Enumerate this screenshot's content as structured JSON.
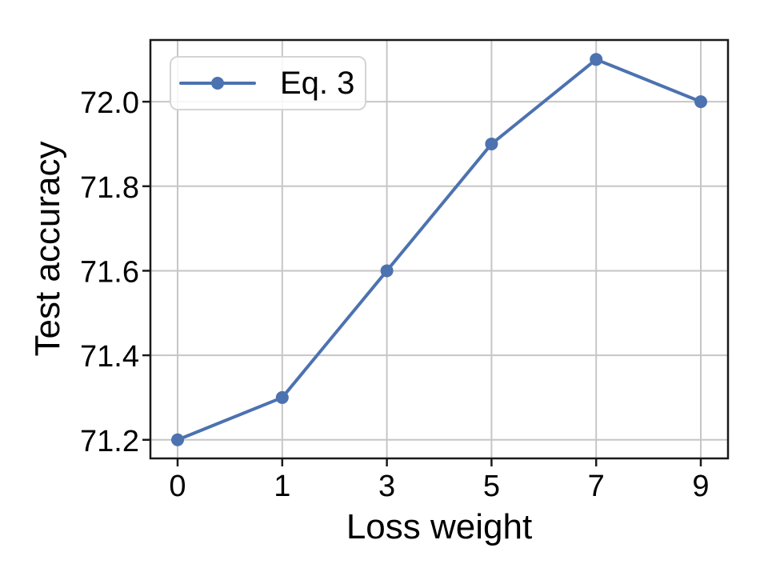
{
  "axes": {
    "xlabel": "Loss weight",
    "ylabel": "Test accuracy"
  },
  "legend": {
    "position": "upper left",
    "entries": [
      {
        "label": "Eq. 3",
        "marker": "circle"
      }
    ]
  },
  "colors": {
    "line": "#4C72B0",
    "grid": "#c6c6c6",
    "spine": "#1a1a1a",
    "tick_text": "#000000",
    "legend_border": "#d4d4d4",
    "background": "#ffffff"
  },
  "chart_data": {
    "type": "line",
    "title": "",
    "xlabel": "Loss weight",
    "ylabel": "Test accuracy",
    "x": [
      0,
      1,
      3,
      5,
      7,
      9
    ],
    "x_tick_labels": [
      "0",
      "1",
      "3",
      "5",
      "7",
      "9"
    ],
    "x_scale": "categorical-equal-spacing",
    "series": [
      {
        "name": "Eq. 3",
        "values": [
          71.2,
          71.3,
          71.6,
          71.9,
          72.1,
          72.0
        ],
        "color": "#4C72B0",
        "marker": "circle"
      }
    ],
    "y_ticks": [
      71.2,
      71.4,
      71.6,
      71.8,
      72.0
    ],
    "y_tick_labels": [
      "71.2",
      "71.4",
      "71.6",
      "71.8",
      "72.0"
    ],
    "ylim": [
      71.156,
      72.146
    ],
    "grid": true,
    "legend_position": "upper left"
  }
}
